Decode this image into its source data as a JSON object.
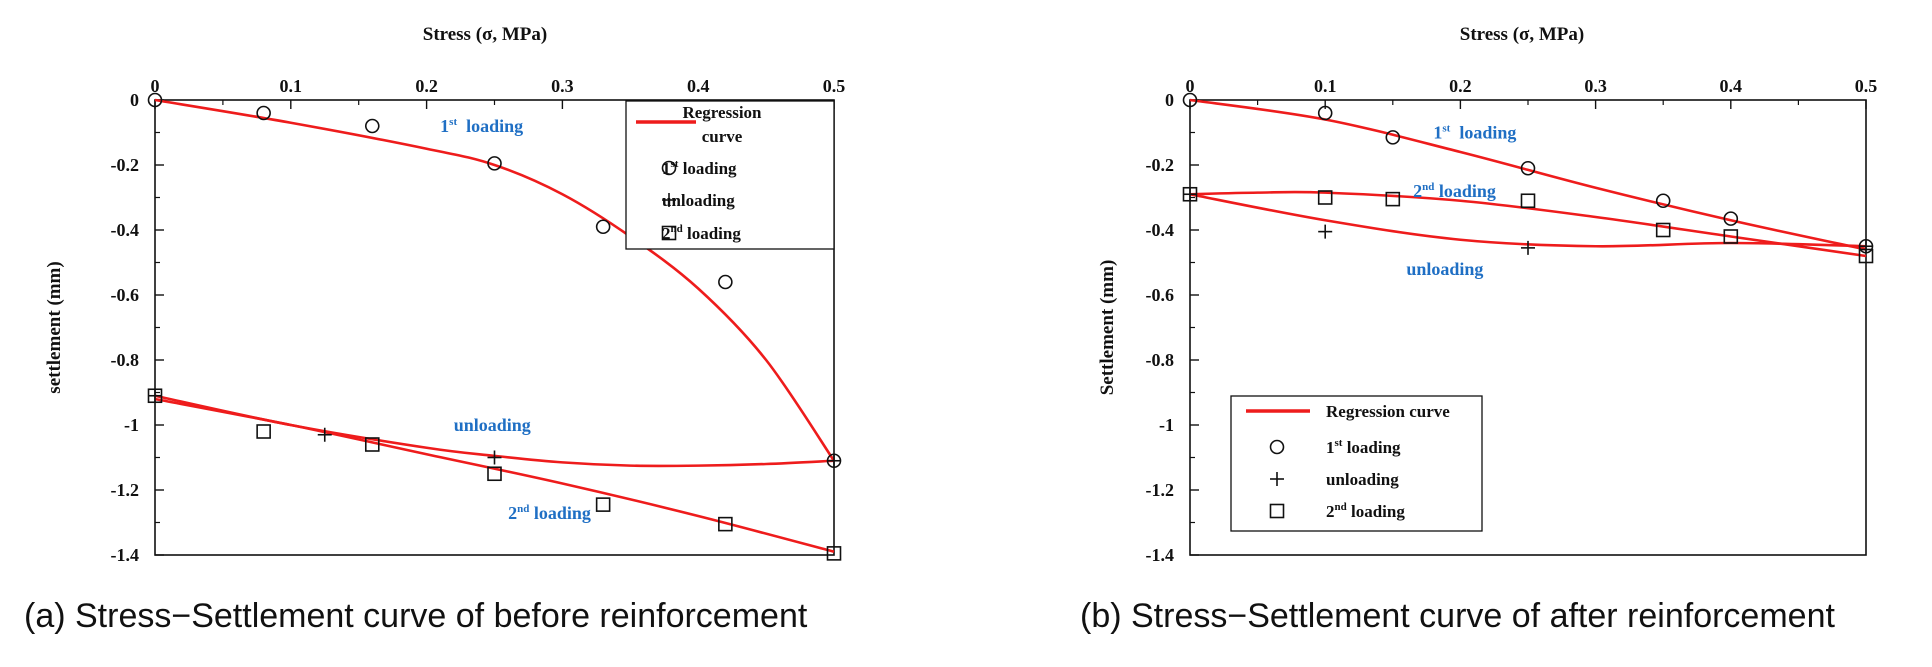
{
  "chart_data": [
    {
      "type": "scatter",
      "panel": "a",
      "caption": "(a) Stress−Settlement curve of before reinforcement",
      "xlabel": "Stress (σ, MPa)",
      "ylabel": "settlement (mm)",
      "xlim": [
        0,
        0.5
      ],
      "ylim": [
        -1.4,
        0
      ],
      "x_ticks": [
        "0",
        "0.1",
        "0.2",
        "0.3",
        "0.4",
        "0.5"
      ],
      "y_ticks": [
        "0",
        "-0.2",
        "-0.4",
        "-0.6",
        "-0.8",
        "-1",
        "-1.2",
        "-1.4"
      ],
      "legend_position": "top-right",
      "legend": [
        {
          "label": "Regression curve",
          "lines": [
            "Regression",
            "curve"
          ],
          "marker": "line"
        },
        {
          "label": "1st loading",
          "base": "1",
          "sup": "st",
          "rest": " loading",
          "marker": "circle"
        },
        {
          "label": "unloading",
          "base": "unloading",
          "marker": "plus"
        },
        {
          "label": "2nd loading",
          "base": "2",
          "sup": "nd",
          "rest": " loading",
          "marker": "square"
        }
      ],
      "annotations": [
        {
          "base": "1",
          "sup": "st",
          "rest": "  loading",
          "x": 0.21,
          "y": -0.08
        },
        {
          "base": "unloading",
          "x": 0.22,
          "y": -1.0
        },
        {
          "base": "2",
          "sup": "nd",
          "rest": " loading",
          "x": 0.26,
          "y": -1.27
        }
      ],
      "series": [
        {
          "name": "1st loading",
          "marker": "circle",
          "x": [
            0,
            0.08,
            0.16,
            0.25,
            0.33,
            0.42,
            0.5
          ],
          "y": [
            0,
            -0.04,
            -0.08,
            -0.195,
            -0.39,
            -0.56,
            -1.11
          ]
        },
        {
          "name": "unloading",
          "marker": "plus",
          "x": [
            0.5,
            0.25,
            0.125,
            0
          ],
          "y": [
            -1.11,
            -1.1,
            -1.03,
            -0.91
          ]
        },
        {
          "name": "2nd loading",
          "marker": "square",
          "x": [
            0,
            0.08,
            0.16,
            0.25,
            0.33,
            0.42,
            0.5
          ],
          "y": [
            -0.91,
            -1.02,
            -1.06,
            -1.15,
            -1.245,
            -1.305,
            -1.395
          ]
        }
      ],
      "regression_curves": [
        {
          "x": [
            0,
            0.1,
            0.2,
            0.25,
            0.3,
            0.35,
            0.4,
            0.45,
            0.5
          ],
          "y": [
            0,
            -0.07,
            -0.15,
            -0.2,
            -0.29,
            -0.42,
            -0.58,
            -0.8,
            -1.11
          ]
        },
        {
          "x": [
            0,
            0.1,
            0.2,
            0.25,
            0.3,
            0.35,
            0.4,
            0.45,
            0.5
          ],
          "y": [
            -0.91,
            -1.0,
            -1.07,
            -1.095,
            -1.115,
            -1.125,
            -1.125,
            -1.12,
            -1.11
          ]
        },
        {
          "x": [
            0,
            0.1,
            0.2,
            0.3,
            0.4,
            0.5
          ],
          "y": [
            -0.92,
            -1.0,
            -1.09,
            -1.18,
            -1.28,
            -1.39
          ]
        }
      ]
    },
    {
      "type": "scatter",
      "panel": "b",
      "caption": "(b) Stress−Settlement curve of after reinforcement",
      "xlabel": "Stress (σ, MPa)",
      "ylabel": "Settlement (mm)",
      "xlim": [
        0,
        0.5
      ],
      "ylim": [
        -1.4,
        0
      ],
      "x_ticks": [
        "0",
        "0.1",
        "0.2",
        "0.3",
        "0.4",
        "0.5"
      ],
      "y_ticks": [
        "0",
        "-0.2",
        "-0.4",
        "-0.6",
        "-0.8",
        "-1",
        "-1.2",
        "-1.4"
      ],
      "legend_position": "bottom-left",
      "legend": [
        {
          "label": "Regression curve",
          "lines": [
            "Regression curve"
          ],
          "marker": "line"
        },
        {
          "label": "1st loading",
          "base": "1",
          "sup": "st",
          "rest": " loading",
          "marker": "circle"
        },
        {
          "label": "unloading",
          "base": "unloading",
          "marker": "plus"
        },
        {
          "label": "2nd loading",
          "base": "2",
          "sup": "nd",
          "rest": " loading",
          "marker": "square"
        }
      ],
      "annotations": [
        {
          "base": "1",
          "sup": "st",
          "rest": "  loading",
          "x": 0.18,
          "y": -0.1
        },
        {
          "base": "2",
          "sup": "nd",
          "rest": " loading",
          "x": 0.165,
          "y": -0.28
        },
        {
          "base": "unloading",
          "x": 0.16,
          "y": -0.52
        }
      ],
      "series": [
        {
          "name": "1st loading",
          "marker": "circle",
          "x": [
            0,
            0.1,
            0.15,
            0.25,
            0.35,
            0.4,
            0.5
          ],
          "y": [
            0,
            -0.04,
            -0.115,
            -0.21,
            -0.31,
            -0.365,
            -0.45
          ]
        },
        {
          "name": "unloading",
          "marker": "plus",
          "x": [
            0.5,
            0.25,
            0.1,
            0
          ],
          "y": [
            -0.45,
            -0.455,
            -0.405,
            -0.29
          ]
        },
        {
          "name": "2nd loading",
          "marker": "square",
          "x": [
            0,
            0.1,
            0.15,
            0.25,
            0.35,
            0.4,
            0.5
          ],
          "y": [
            -0.29,
            -0.3,
            -0.305,
            -0.31,
            -0.4,
            -0.42,
            -0.48
          ]
        }
      ],
      "regression_curves": [
        {
          "x": [
            0,
            0.1,
            0.2,
            0.3,
            0.4,
            0.5
          ],
          "y": [
            0,
            -0.06,
            -0.16,
            -0.27,
            -0.37,
            -0.46
          ]
        },
        {
          "x": [
            0,
            0.1,
            0.2,
            0.3,
            0.4,
            0.5
          ],
          "y": [
            -0.29,
            -0.37,
            -0.43,
            -0.45,
            -0.44,
            -0.45
          ]
        },
        {
          "x": [
            0,
            0.05,
            0.1,
            0.2,
            0.3,
            0.4,
            0.5
          ],
          "y": [
            -0.29,
            -0.285,
            -0.285,
            -0.31,
            -0.36,
            -0.42,
            -0.48
          ]
        }
      ]
    }
  ],
  "colors": {
    "regression": "#ee1c1c",
    "annotation": "#1f6fc4",
    "axis": "#111111"
  }
}
